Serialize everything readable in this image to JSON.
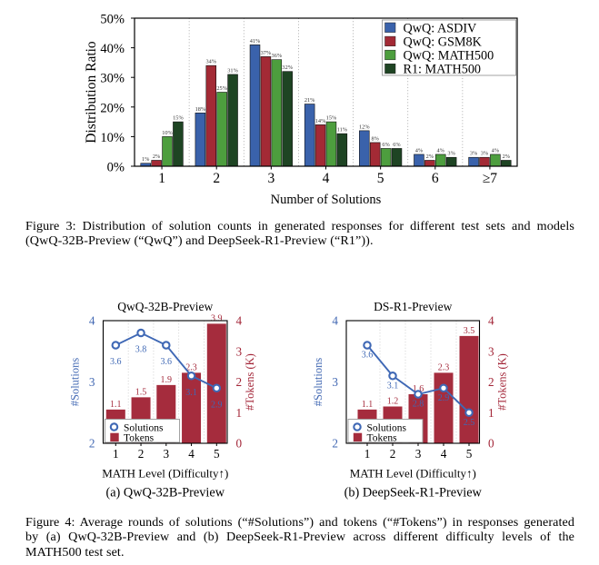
{
  "figure3": {
    "caption_lines": [
      "Figure 3: Distribution of solution counts in generated responses for different test sets and models",
      "(QwQ-32B-Preview (“QwQ”) and DeepSeek-R1-Preview (“R1”))."
    ],
    "chart_data": {
      "type": "bar",
      "title": "",
      "xlabel": "Number of Solutions",
      "ylabel": "Distribution Ratio",
      "categories": [
        "1",
        "2",
        "3",
        "4",
        "5",
        "6",
        "≥7"
      ],
      "series": [
        {
          "name": "QwQ: ASDIV",
          "color": "#3a62ab",
          "values": [
            1,
            18,
            41,
            21,
            12,
            4,
            3
          ]
        },
        {
          "name": "QwQ: GSM8K",
          "color": "#a32a35",
          "values": [
            2,
            34,
            37,
            14,
            8,
            2,
            3
          ]
        },
        {
          "name": "QwQ: MATH500",
          "color": "#4d9e3e",
          "values": [
            10,
            25,
            36,
            15,
            6,
            4,
            4
          ]
        },
        {
          "name": "R1: MATH500",
          "color": "#1e4423",
          "values": [
            15,
            31,
            32,
            11,
            6,
            3,
            2
          ]
        }
      ],
      "ylim": [
        0,
        50
      ],
      "yticks": [
        "0%",
        "10%",
        "20%",
        "30%",
        "40%",
        "50%"
      ],
      "legend_position": "top-right",
      "grid": "dotted vertical separators between categories",
      "value_label_suffix": "%"
    }
  },
  "figure4": {
    "caption_lines": [
      "Figure 4: Average rounds of solutions (“#Solutions”) and tokens (“#Tokens”) in responses generated",
      "by (a) QwQ-32B-Preview and (b) DeepSeek-R1-Preview across different difficulty levels of the",
      "MATH500 test set."
    ],
    "chart_data": [
      {
        "type": "bar+line",
        "title": "QwQ-32B-Preview",
        "subcaption": "(a) QwQ-32B-Preview",
        "xlabel": "MATH Level (Difficulty↑)",
        "categories": [
          "1",
          "2",
          "3",
          "4",
          "5"
        ],
        "left_axis": {
          "label": "#Solutions",
          "range": [
            2,
            4
          ],
          "ticks": [
            "2",
            "3",
            "4"
          ],
          "color": "#4268b3"
        },
        "right_axis": {
          "label": "#Tokens (K)",
          "range": [
            0,
            4
          ],
          "ticks": [
            "0",
            "1",
            "2",
            "3",
            "4"
          ],
          "color": "#a32638"
        },
        "line": {
          "name": "Solutions",
          "color": "#3f68b5",
          "values": [
            3.6,
            3.8,
            3.6,
            3.1,
            2.9
          ]
        },
        "bars": {
          "name": "Tokens",
          "color": "#a52c3d",
          "values": [
            1.1,
            1.5,
            1.9,
            2.3,
            3.9
          ]
        },
        "legend": [
          "Solutions",
          "Tokens"
        ]
      },
      {
        "type": "bar+line",
        "title": "DS-R1-Preview",
        "subcaption": "(b) DeepSeek-R1-Preview",
        "xlabel": "MATH Level (Difficulty↑)",
        "categories": [
          "1",
          "2",
          "3",
          "4",
          "5"
        ],
        "left_axis": {
          "label": "#Solutions",
          "range": [
            2,
            4
          ],
          "ticks": [
            "2",
            "3",
            "4"
          ],
          "color": "#4268b3"
        },
        "right_axis": {
          "label": "#Tokens (K)",
          "range": [
            0,
            4
          ],
          "ticks": [
            "0",
            "1",
            "2",
            "3",
            "4"
          ],
          "color": "#a32638"
        },
        "line": {
          "name": "Solutions",
          "color": "#3f68b5",
          "values": [
            3.6,
            3.1,
            2.8,
            2.9,
            2.5
          ]
        },
        "bars": {
          "name": "Tokens",
          "color": "#a52c3d",
          "values": [
            1.1,
            1.2,
            1.6,
            2.3,
            3.5
          ]
        },
        "legend": [
          "Solutions",
          "Tokens"
        ]
      }
    ]
  }
}
